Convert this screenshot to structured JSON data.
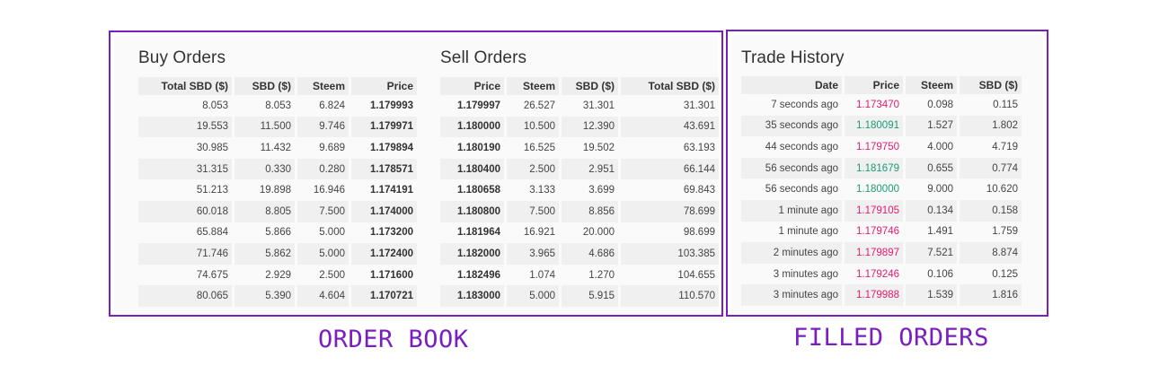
{
  "buy_orders": {
    "title": "Buy Orders",
    "headers": [
      "Total SBD ($)",
      "SBD ($)",
      "Steem",
      "Price"
    ],
    "rows": [
      [
        "8.053",
        "8.053",
        "6.824",
        "1.179993"
      ],
      [
        "19.553",
        "11.500",
        "9.746",
        "1.179971"
      ],
      [
        "30.985",
        "11.432",
        "9.689",
        "1.179894"
      ],
      [
        "31.315",
        "0.330",
        "0.280",
        "1.178571"
      ],
      [
        "51.213",
        "19.898",
        "16.946",
        "1.174191"
      ],
      [
        "60.018",
        "8.805",
        "7.500",
        "1.174000"
      ],
      [
        "65.884",
        "5.866",
        "5.000",
        "1.173200"
      ],
      [
        "71.746",
        "5.862",
        "5.000",
        "1.172400"
      ],
      [
        "74.675",
        "2.929",
        "2.500",
        "1.171600"
      ],
      [
        "80.065",
        "5.390",
        "4.604",
        "1.170721"
      ]
    ]
  },
  "sell_orders": {
    "title": "Sell Orders",
    "headers": [
      "Price",
      "Steem",
      "SBD ($)",
      "Total SBD ($)"
    ],
    "rows": [
      [
        "1.179997",
        "26.527",
        "31.301",
        "31.301"
      ],
      [
        "1.180000",
        "10.500",
        "12.390",
        "43.691"
      ],
      [
        "1.180190",
        "16.525",
        "19.502",
        "63.193"
      ],
      [
        "1.180400",
        "2.500",
        "2.951",
        "66.144"
      ],
      [
        "1.180658",
        "3.133",
        "3.699",
        "69.843"
      ],
      [
        "1.180800",
        "7.500",
        "8.856",
        "78.699"
      ],
      [
        "1.181964",
        "16.921",
        "20.000",
        "98.699"
      ],
      [
        "1.182000",
        "3.965",
        "4.686",
        "103.385"
      ],
      [
        "1.182496",
        "1.074",
        "1.270",
        "104.655"
      ],
      [
        "1.183000",
        "5.000",
        "5.915",
        "110.570"
      ]
    ]
  },
  "trade_history": {
    "title": "Trade History",
    "headers": [
      "Date",
      "Price",
      "Steem",
      "SBD ($)"
    ],
    "rows": [
      {
        "date": "7 seconds ago",
        "price": "1.173470",
        "dir": "down",
        "steem": "0.098",
        "sbd": "0.115"
      },
      {
        "date": "35 seconds ago",
        "price": "1.180091",
        "dir": "up",
        "steem": "1.527",
        "sbd": "1.802"
      },
      {
        "date": "44 seconds ago",
        "price": "1.179750",
        "dir": "down",
        "steem": "4.000",
        "sbd": "4.719"
      },
      {
        "date": "56 seconds ago",
        "price": "1.181679",
        "dir": "up",
        "steem": "0.655",
        "sbd": "0.774"
      },
      {
        "date": "56 seconds ago",
        "price": "1.180000",
        "dir": "up",
        "steem": "9.000",
        "sbd": "10.620"
      },
      {
        "date": "1 minute ago",
        "price": "1.179105",
        "dir": "down",
        "steem": "0.134",
        "sbd": "0.158"
      },
      {
        "date": "1 minute ago",
        "price": "1.179746",
        "dir": "down",
        "steem": "1.491",
        "sbd": "1.759"
      },
      {
        "date": "2 minutes ago",
        "price": "1.179897",
        "dir": "down",
        "steem": "7.521",
        "sbd": "8.874"
      },
      {
        "date": "3 minutes ago",
        "price": "1.179246",
        "dir": "down",
        "steem": "0.106",
        "sbd": "0.125"
      },
      {
        "date": "3 minutes ago",
        "price": "1.179988",
        "dir": "down",
        "steem": "1.539",
        "sbd": "1.816"
      }
    ]
  },
  "colors": {
    "frame": "#7a1fbf",
    "price_up": "#1a9b74",
    "price_down": "#e8196e"
  },
  "captions": {
    "order_book": "ORDER BOOK",
    "filled_orders": "FILLED ORDERS"
  }
}
